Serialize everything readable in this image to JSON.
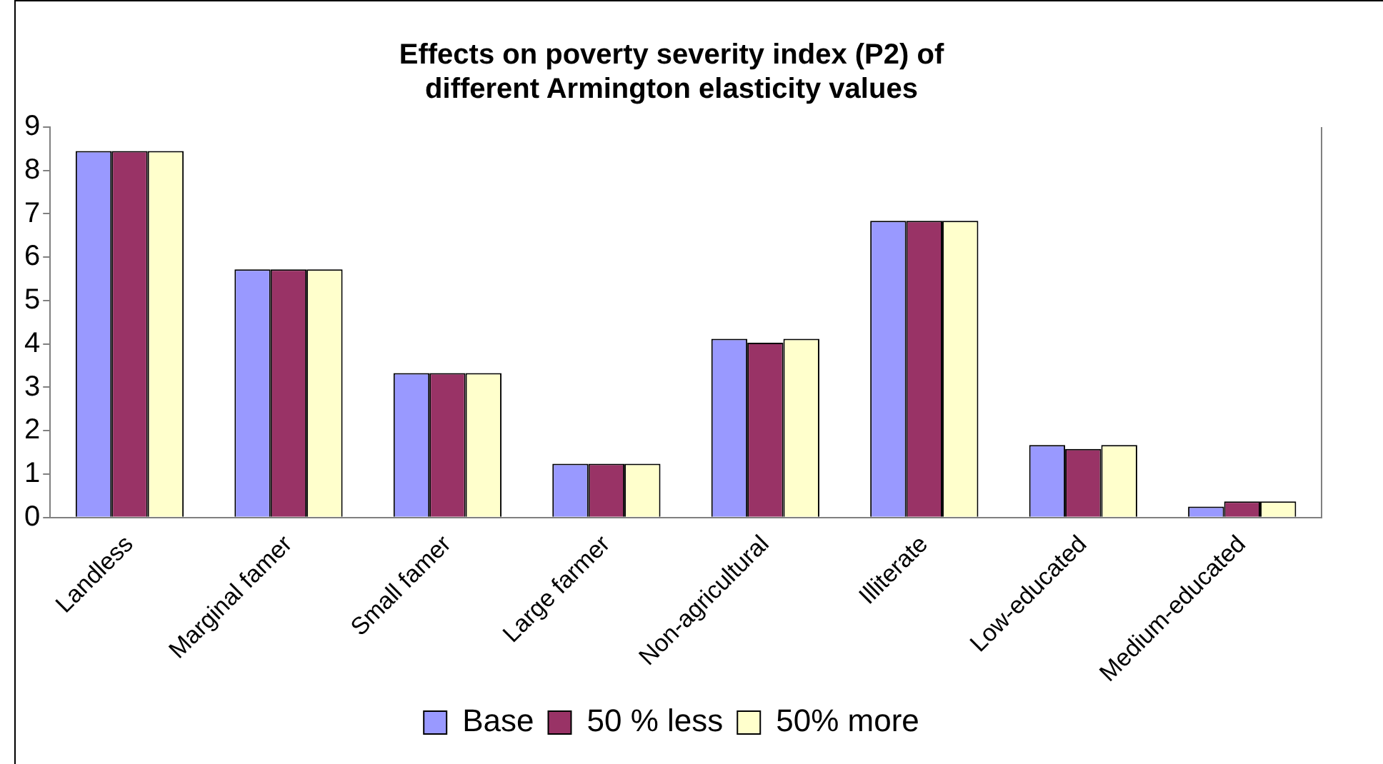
{
  "chart_data": {
    "type": "bar",
    "title": "Effects on poverty severity index (P2) of different Armington elasticity values",
    "categories": [
      "Landless",
      "Marginal famer",
      "Small famer",
      "Large farmer",
      "Non-agricultural",
      "Illiterate",
      "Low-educated",
      "Medium-educated"
    ],
    "series": [
      {
        "name": "Base",
        "color": "#9999ff",
        "values": [
          8.45,
          5.72,
          3.33,
          1.24,
          4.12,
          6.84,
          1.67,
          0.25
        ]
      },
      {
        "name": "50 % less",
        "color": "#993366",
        "values": [
          8.45,
          5.72,
          3.33,
          1.24,
          4.03,
          6.84,
          1.58,
          0.37
        ]
      },
      {
        "name": "50% more",
        "color": "#ffffcc",
        "values": [
          8.45,
          5.72,
          3.33,
          1.24,
          4.12,
          6.84,
          1.67,
          0.37
        ]
      }
    ],
    "ylim": [
      0,
      9
    ],
    "yticks": [
      0,
      1,
      2,
      3,
      4,
      5,
      6,
      7,
      8,
      9
    ],
    "grid": false,
    "legend": "bottom"
  }
}
